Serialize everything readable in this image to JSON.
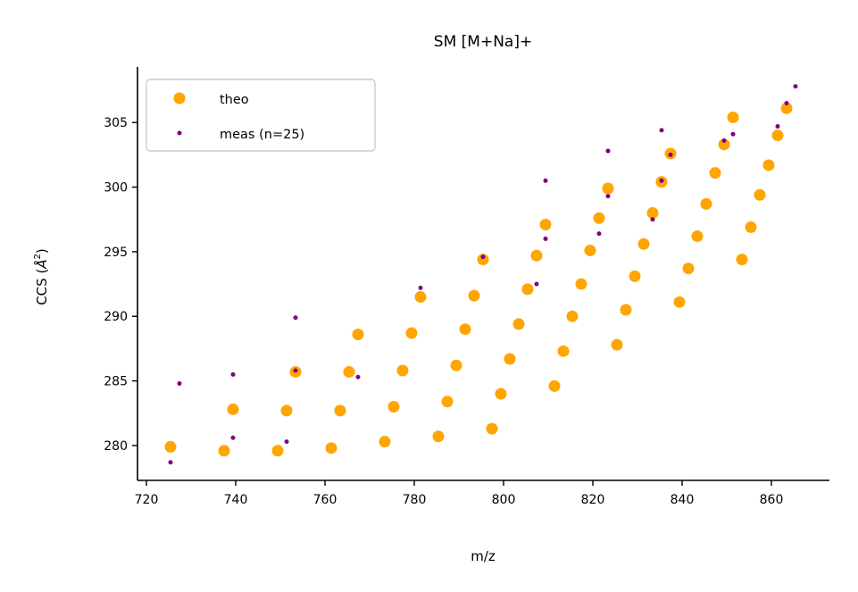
{
  "chart_data": {
    "type": "scatter",
    "title": "SM [M+Na]+",
    "xlabel": "m/z",
    "ylabel_main": "CCS (",
    "ylabel_unit": "Å",
    "ylabel_sup": "2",
    "ylabel_close": ")",
    "xlim": [
      718,
      873
    ],
    "ylim": [
      277.3,
      309.3
    ],
    "xticks": [
      720,
      740,
      760,
      780,
      800,
      820,
      840,
      860
    ],
    "yticks": [
      280,
      285,
      290,
      295,
      300,
      305
    ],
    "grid": false,
    "legend_placement": "top-left",
    "series": [
      {
        "name": "theo",
        "color": "#FFA500",
        "marker": "large",
        "points": [
          [
            725.4,
            279.9
          ],
          [
            737.4,
            279.6
          ],
          [
            739.4,
            282.8
          ],
          [
            749.4,
            279.6
          ],
          [
            751.4,
            282.7
          ],
          [
            753.4,
            285.7
          ],
          [
            761.4,
            279.8
          ],
          [
            763.4,
            282.7
          ],
          [
            765.4,
            285.7
          ],
          [
            767.4,
            288.6
          ],
          [
            773.4,
            280.3
          ],
          [
            775.4,
            283.0
          ],
          [
            777.4,
            285.8
          ],
          [
            779.4,
            288.7
          ],
          [
            781.4,
            291.5
          ],
          [
            785.4,
            280.7
          ],
          [
            787.4,
            283.4
          ],
          [
            789.4,
            286.2
          ],
          [
            791.4,
            289.0
          ],
          [
            793.4,
            291.6
          ],
          [
            795.4,
            294.4
          ],
          [
            797.4,
            281.3
          ],
          [
            799.4,
            284.0
          ],
          [
            801.4,
            286.7
          ],
          [
            803.4,
            289.4
          ],
          [
            805.4,
            292.1
          ],
          [
            807.4,
            294.7
          ],
          [
            809.4,
            297.1
          ],
          [
            811.4,
            284.6
          ],
          [
            813.4,
            287.3
          ],
          [
            815.4,
            290.0
          ],
          [
            817.4,
            292.5
          ],
          [
            819.4,
            295.1
          ],
          [
            821.4,
            297.6
          ],
          [
            823.4,
            299.9
          ],
          [
            825.4,
            287.8
          ],
          [
            827.4,
            290.5
          ],
          [
            829.4,
            293.1
          ],
          [
            831.4,
            295.6
          ],
          [
            833.4,
            298.0
          ],
          [
            835.4,
            300.4
          ],
          [
            837.4,
            302.6
          ],
          [
            839.4,
            291.1
          ],
          [
            841.4,
            293.7
          ],
          [
            843.4,
            296.2
          ],
          [
            845.4,
            298.7
          ],
          [
            847.4,
            301.1
          ],
          [
            849.4,
            303.3
          ],
          [
            851.4,
            305.4
          ],
          [
            853.4,
            294.4
          ],
          [
            855.4,
            296.9
          ],
          [
            857.4,
            299.4
          ],
          [
            859.4,
            301.7
          ],
          [
            861.4,
            304.0
          ],
          [
            863.4,
            306.1
          ]
        ]
      },
      {
        "name": "meas (n=25)",
        "color": "#800080",
        "marker": "small",
        "points": [
          [
            725.4,
            278.7
          ],
          [
            727.4,
            284.8
          ],
          [
            739.4,
            280.6
          ],
          [
            739.4,
            285.5
          ],
          [
            751.4,
            280.3
          ],
          [
            753.4,
            285.8
          ],
          [
            753.4,
            289.9
          ],
          [
            767.4,
            285.3
          ],
          [
            781.4,
            292.2
          ],
          [
            795.4,
            294.6
          ],
          [
            807.4,
            292.5
          ],
          [
            809.4,
            296.0
          ],
          [
            809.4,
            300.5
          ],
          [
            821.4,
            296.4
          ],
          [
            823.4,
            299.3
          ],
          [
            823.4,
            302.8
          ],
          [
            833.4,
            297.5
          ],
          [
            835.4,
            300.5
          ],
          [
            835.4,
            304.4
          ],
          [
            837.4,
            302.5
          ],
          [
            849.4,
            303.6
          ],
          [
            851.4,
            304.1
          ],
          [
            861.4,
            304.7
          ],
          [
            863.4,
            306.5
          ],
          [
            865.4,
            307.8
          ]
        ]
      }
    ]
  }
}
